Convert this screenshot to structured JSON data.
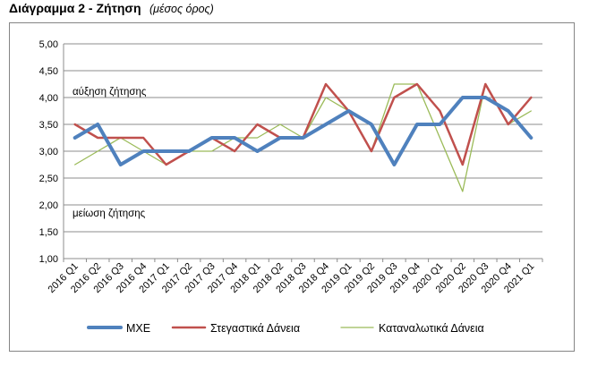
{
  "header": {
    "title": "Διάγραμμα 2 - Ζήτηση",
    "subtitle": "(μέσος όρος)"
  },
  "chart_data": {
    "type": "line",
    "categories": [
      "2016 Q1",
      "2016 Q2",
      "2016 Q3",
      "2016 Q4",
      "2017 Q1",
      "2017 Q2",
      "2017 Q3",
      "2017 Q4",
      "2018 Q1",
      "2018 Q2",
      "2018 Q3",
      "2018 Q4",
      "2019 Q1",
      "2019 Q2",
      "2019 Q3",
      "2019 Q4",
      "2020 Q1",
      "2020 Q2",
      "2020 Q3",
      "2020 Q4",
      "2021 Q1"
    ],
    "ylim": [
      1.0,
      5.0
    ],
    "yticks": [
      "1,00",
      "1,50",
      "2,00",
      "2,50",
      "3,00",
      "3,50",
      "4,00",
      "4,50",
      "5,00"
    ],
    "grid": true,
    "legend_position": "bottom",
    "annotations": {
      "upper": "αύξηση ζήτησης",
      "lower": "μείωση ζήτησης"
    },
    "series": [
      {
        "name": "ΜΧΕ",
        "color": "#4F81BD",
        "values": [
          3.25,
          3.5,
          2.75,
          3.0,
          3.0,
          3.0,
          3.25,
          3.25,
          3.0,
          3.25,
          3.25,
          3.5,
          3.75,
          3.5,
          2.75,
          3.5,
          3.5,
          4.0,
          4.0,
          3.75,
          3.25
        ]
      },
      {
        "name": "Στεγαστικά Δάνεια",
        "color": "#C0504D",
        "values": [
          3.5,
          3.25,
          3.25,
          3.25,
          2.75,
          3.0,
          3.25,
          3.0,
          3.5,
          3.25,
          3.25,
          4.25,
          3.75,
          3.0,
          4.0,
          4.25,
          3.75,
          2.75,
          4.25,
          3.5,
          4.0
        ]
      },
      {
        "name": "Καταναλωτικά Δάνεια",
        "color": "#9BBB59",
        "values": [
          2.75,
          3.0,
          3.25,
          3.0,
          2.75,
          3.0,
          3.0,
          3.25,
          3.25,
          3.5,
          3.25,
          4.0,
          3.75,
          3.0,
          4.25,
          4.25,
          3.25,
          2.25,
          4.25,
          3.5,
          3.75
        ]
      }
    ]
  }
}
